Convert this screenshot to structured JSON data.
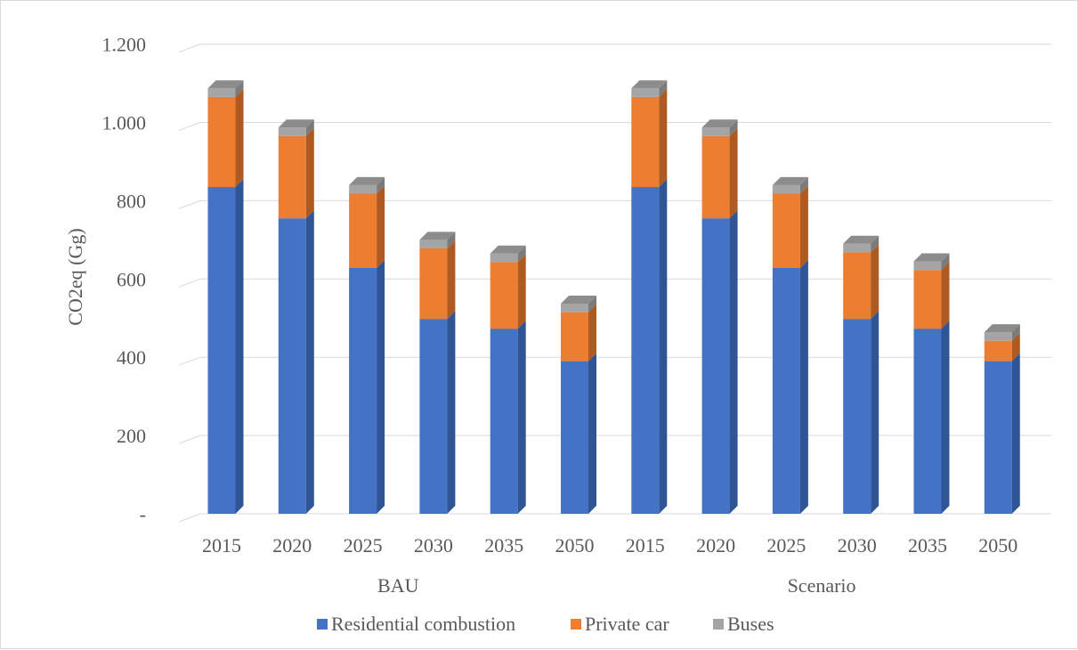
{
  "chart_data": {
    "type": "bar",
    "stacked": true,
    "three_d": true,
    "ylabel": "CO2eq (Gg)",
    "xlabel": "",
    "ylim": [
      0,
      1200
    ],
    "yticks": [
      {
        "value": 0,
        "label": "-"
      },
      {
        "value": 200,
        "label": "200"
      },
      {
        "value": 400,
        "label": "400"
      },
      {
        "value": 600,
        "label": "600"
      },
      {
        "value": 800,
        "label": "800"
      },
      {
        "value": 1000,
        "label": "1.000"
      },
      {
        "value": 1200,
        "label": "1.200"
      }
    ],
    "grid": true,
    "legend_position": "bottom",
    "groups": [
      {
        "label": "BAU",
        "categories": [
          "2015",
          "2020",
          "2025",
          "2030",
          "2035",
          "2050"
        ]
      },
      {
        "label": "Scenario",
        "categories": [
          "2015",
          "2020",
          "2025",
          "2030",
          "2035",
          "2050"
        ]
      }
    ],
    "series": [
      {
        "name": "Residential combustion",
        "color": "#4472c4",
        "side_color": "#2f5597",
        "top_color": "#3a64b0",
        "values": [
          835,
          755,
          628,
          498,
          473,
          390,
          835,
          755,
          628,
          498,
          473,
          390
        ]
      },
      {
        "name": "Private car",
        "color": "#ed7d31",
        "side_color": "#ae5a21",
        "top_color": "#d26f2a",
        "values": [
          230,
          210,
          190,
          180,
          170,
          125,
          230,
          210,
          190,
          170,
          150,
          52
        ]
      },
      {
        "name": "Buses",
        "color": "#a5a5a5",
        "side_color": "#7b7b7b",
        "top_color": "#8c8c8c",
        "values": [
          22,
          22,
          22,
          22,
          22,
          22,
          22,
          22,
          22,
          22,
          22,
          22
        ]
      }
    ]
  }
}
